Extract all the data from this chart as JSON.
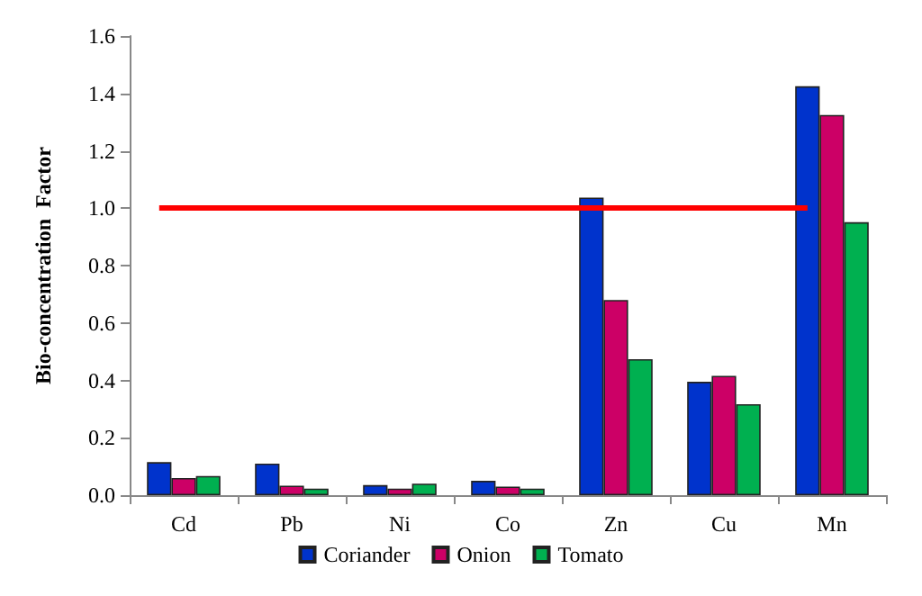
{
  "chart_data": {
    "type": "bar",
    "ylabel": "Bio-concentration  Factor",
    "categories": [
      "Cd",
      "Pb",
      "Ni",
      "Co",
      "Zn",
      "Cu",
      "Mn"
    ],
    "series": [
      {
        "name": "Coriander",
        "color": "#0033cc",
        "values": [
          0.115,
          0.11,
          0.035,
          0.05,
          1.037,
          0.395,
          1.425
        ]
      },
      {
        "name": "Onion",
        "color": "#cc0066",
        "values": [
          0.06,
          0.033,
          0.023,
          0.03,
          0.68,
          0.416,
          1.325
        ]
      },
      {
        "name": "Tomato",
        "color": "#00b050",
        "values": [
          0.067,
          0.023,
          0.04,
          0.023,
          0.474,
          0.317,
          0.951
        ]
      }
    ],
    "ylim": [
      0,
      1.6
    ],
    "yticks": [
      {
        "value": 0,
        "label": "0.0"
      },
      {
        "value": 0.2,
        "label": "0.2"
      },
      {
        "value": 0.4,
        "label": "0.4"
      },
      {
        "value": 0.6,
        "label": "0.6"
      },
      {
        "value": 0.8,
        "label": "0.8"
      },
      {
        "value": 1,
        "label": "1.0"
      },
      {
        "value": 1.2,
        "label": "1.2"
      },
      {
        "value": 1.4,
        "label": "1.4"
      },
      {
        "value": 1.6,
        "label": "1.6"
      }
    ],
    "ref_lines": [
      {
        "axis": "y",
        "value": 1,
        "color": "#ff0000"
      }
    ],
    "grid": false,
    "legend": "bottom"
  }
}
